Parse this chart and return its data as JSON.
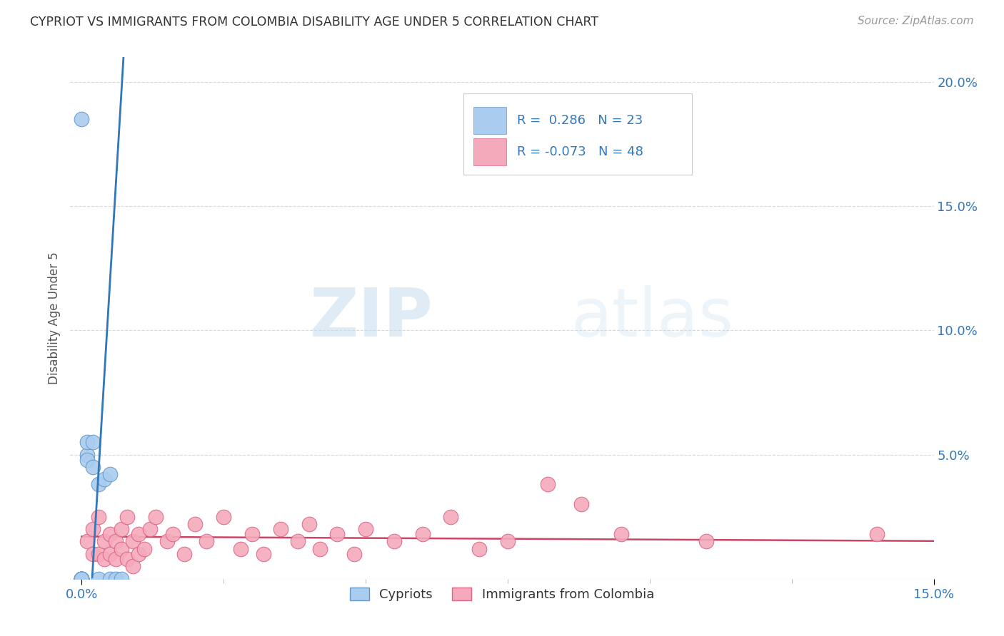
{
  "title": "CYPRIOT VS IMMIGRANTS FROM COLOMBIA DISABILITY AGE UNDER 5 CORRELATION CHART",
  "source": "Source: ZipAtlas.com",
  "ylabel": "Disability Age Under 5",
  "xlim": [
    0.0,
    0.15
  ],
  "ylim": [
    0.0,
    0.21
  ],
  "background_color": "#ffffff",
  "grid_color": "#d8d8d8",
  "cypriot_color": "#aaccee",
  "cypriot_edge_color": "#6699cc",
  "colombia_color": "#f4aabb",
  "colombia_edge_color": "#dd6688",
  "trend_cypriot_color": "#88bbdd",
  "trend_cypriot_solid_color": "#3377bb",
  "trend_colombia_color": "#cc4466",
  "R_cypriot": 0.286,
  "N_cypriot": 23,
  "R_colombia": -0.073,
  "N_colombia": 48,
  "watermark_zip": "ZIP",
  "watermark_atlas": "atlas",
  "cypriot_x": [
    0.0,
    0.0,
    0.0,
    0.0,
    0.0,
    0.0,
    0.0,
    0.0,
    0.0,
    0.0,
    0.001,
    0.001,
    0.001,
    0.002,
    0.002,
    0.003,
    0.003,
    0.004,
    0.005,
    0.005,
    0.006,
    0.007,
    0.0
  ],
  "cypriot_y": [
    0.0,
    0.0,
    0.0,
    0.0,
    0.0,
    0.0,
    0.0,
    0.0,
    0.0,
    0.0,
    0.05,
    0.055,
    0.048,
    0.055,
    0.045,
    0.038,
    0.0,
    0.04,
    0.042,
    0.0,
    0.0,
    0.0,
    0.185
  ],
  "colombia_x": [
    0.001,
    0.002,
    0.002,
    0.003,
    0.003,
    0.004,
    0.004,
    0.005,
    0.005,
    0.006,
    0.006,
    0.007,
    0.007,
    0.008,
    0.008,
    0.009,
    0.009,
    0.01,
    0.01,
    0.011,
    0.012,
    0.013,
    0.015,
    0.016,
    0.018,
    0.02,
    0.022,
    0.025,
    0.028,
    0.03,
    0.032,
    0.035,
    0.038,
    0.04,
    0.042,
    0.045,
    0.048,
    0.05,
    0.055,
    0.06,
    0.065,
    0.07,
    0.075,
    0.082,
    0.088,
    0.095,
    0.11,
    0.14
  ],
  "colombia_y": [
    0.015,
    0.02,
    0.01,
    0.025,
    0.01,
    0.015,
    0.008,
    0.018,
    0.01,
    0.015,
    0.008,
    0.02,
    0.012,
    0.025,
    0.008,
    0.015,
    0.005,
    0.018,
    0.01,
    0.012,
    0.02,
    0.025,
    0.015,
    0.018,
    0.01,
    0.022,
    0.015,
    0.025,
    0.012,
    0.018,
    0.01,
    0.02,
    0.015,
    0.022,
    0.012,
    0.018,
    0.01,
    0.02,
    0.015,
    0.018,
    0.025,
    0.012,
    0.015,
    0.038,
    0.03,
    0.018,
    0.015,
    0.018
  ]
}
